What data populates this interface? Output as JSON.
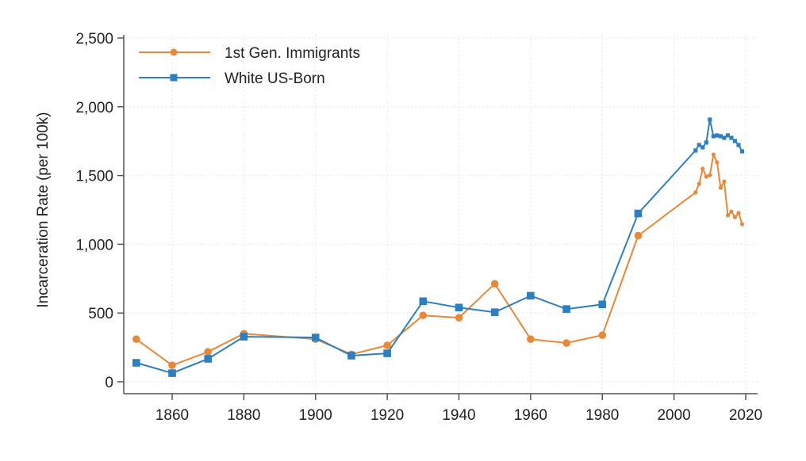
{
  "chart_data": {
    "type": "line",
    "title": "",
    "xlabel": "",
    "ylabel": "Incarceration Rate (per 100k)",
    "xlim": [
      1846,
      2021
    ],
    "ylim": [
      0,
      2500
    ],
    "xticks": [
      1860,
      1880,
      1900,
      1920,
      1940,
      1960,
      1980,
      2000,
      2020
    ],
    "yticks": [
      0,
      500,
      1000,
      1500,
      2000,
      2500
    ],
    "ytick_labels": [
      "0",
      "500",
      "1,000",
      "1,500",
      "2,000",
      "2,500"
    ],
    "grid": true,
    "legend_position": "top-left",
    "series": [
      {
        "name": "1st Gen. Immigrants",
        "color": "#E8883A",
        "marker": "circle",
        "x": [
          1850,
          1860,
          1870,
          1880,
          1900,
          1910,
          1920,
          1930,
          1940,
          1950,
          1960,
          1970,
          1980,
          1990,
          2006,
          2007,
          2008,
          2009,
          2010,
          2011,
          2012,
          2013,
          2014,
          2015,
          2016,
          2017,
          2018,
          2019
        ],
        "y": [
          310,
          120,
          218,
          350,
          310,
          200,
          265,
          483,
          466,
          713,
          310,
          282,
          339,
          1063,
          1377,
          1440,
          1550,
          1492,
          1503,
          1653,
          1596,
          1411,
          1457,
          1210,
          1238,
          1198,
          1227,
          1146
        ]
      },
      {
        "name": "White US-Born",
        "color": "#2E7FBF",
        "marker": "square",
        "x": [
          1850,
          1860,
          1870,
          1880,
          1900,
          1910,
          1920,
          1930,
          1940,
          1950,
          1960,
          1970,
          1980,
          1990,
          2006,
          2007,
          2008,
          2009,
          2010,
          2011,
          2012,
          2013,
          2014,
          2015,
          2016,
          2017,
          2018,
          2019
        ],
        "y": [
          138,
          63,
          167,
          328,
          322,
          190,
          207,
          586,
          540,
          506,
          626,
          529,
          563,
          1224,
          1682,
          1722,
          1705,
          1740,
          1907,
          1786,
          1792,
          1786,
          1774,
          1792,
          1774,
          1751,
          1722,
          1676
        ]
      }
    ]
  }
}
